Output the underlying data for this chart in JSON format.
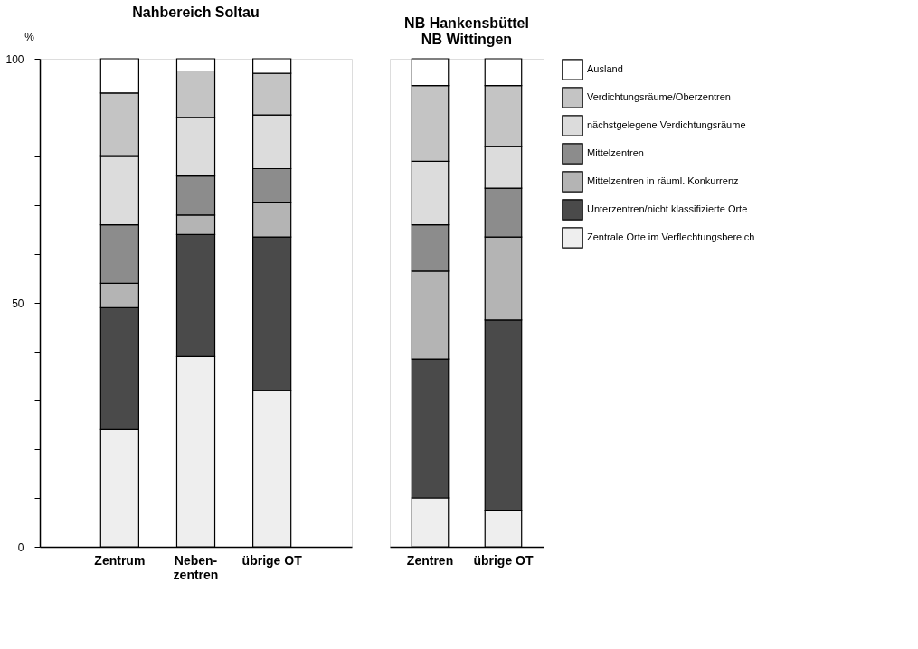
{
  "chart_data": [
    {
      "type": "bar",
      "stacked": true,
      "title": "Nahbereich Soltau",
      "ylabel": "%",
      "categories": [
        "Zentrum",
        "Neben-\nzentren",
        "übrige OT"
      ],
      "ylim": [
        0,
        100
      ],
      "yticks": [
        0,
        {
          "value": 10,
          "label": null
        },
        {
          "value": 20,
          "label": null
        },
        {
          "value": 30,
          "label": null
        },
        {
          "value": 40,
          "label": null
        },
        50,
        {
          "value": 60,
          "label": null
        },
        {
          "value": 70,
          "label": null
        },
        {
          "value": 80,
          "label": null
        },
        {
          "value": 90,
          "label": null
        },
        100
      ],
      "grid": false,
      "series": [
        {
          "color": "#eeeeee",
          "values": [
            24,
            39,
            32
          ]
        },
        {
          "color": "#4a4a4a",
          "values": [
            25,
            25,
            31.5
          ]
        },
        {
          "color": "#b4b4b4",
          "values": [
            5,
            4,
            7
          ]
        },
        {
          "color": "#8c8c8c",
          "values": [
            12,
            8,
            7
          ]
        },
        {
          "color": "#dcdcdc",
          "values": [
            14,
            12,
            11
          ]
        },
        {
          "color": "#c4c4c4",
          "values": [
            13,
            9.5,
            8.5
          ]
        },
        {
          "color": "#ffffff",
          "values": [
            7,
            2.5,
            3
          ]
        }
      ]
    },
    {
      "type": "bar",
      "stacked": true,
      "title": "NB Hankensbüttel\nNB Wittingen",
      "categories": [
        "Zentren",
        "übrige OT"
      ],
      "ylim": [
        0,
        100
      ],
      "tick_labels": "x",
      "grid": false,
      "legend": "right",
      "series": [
        {
          "name": "Zentrale Orte im Verflechtungsbereich",
          "color": "#eeeeee",
          "values": [
            10,
            7.5
          ]
        },
        {
          "name": "Unterzentren/nicht klassifizierte Orte",
          "color": "#4a4a4a",
          "values": [
            28.5,
            39
          ]
        },
        {
          "name": "Mittelzentren in räuml. Konkurrenz",
          "color": "#b4b4b4",
          "values": [
            18,
            17
          ]
        },
        {
          "name": "Mittelzentren",
          "color": "#8c8c8c",
          "values": [
            9.5,
            10
          ]
        },
        {
          "name": "nächstgelegene Verdichtungsräume",
          "color": "#dcdcdc",
          "values": [
            13,
            8.5
          ]
        },
        {
          "name": "Verdichtungsräume/Oberzentren",
          "color": "#c4c4c4",
          "values": [
            15.5,
            12.5
          ]
        },
        {
          "name": "Ausland",
          "color": "#ffffff",
          "values": [
            5.5,
            5.5
          ]
        }
      ]
    }
  ]
}
